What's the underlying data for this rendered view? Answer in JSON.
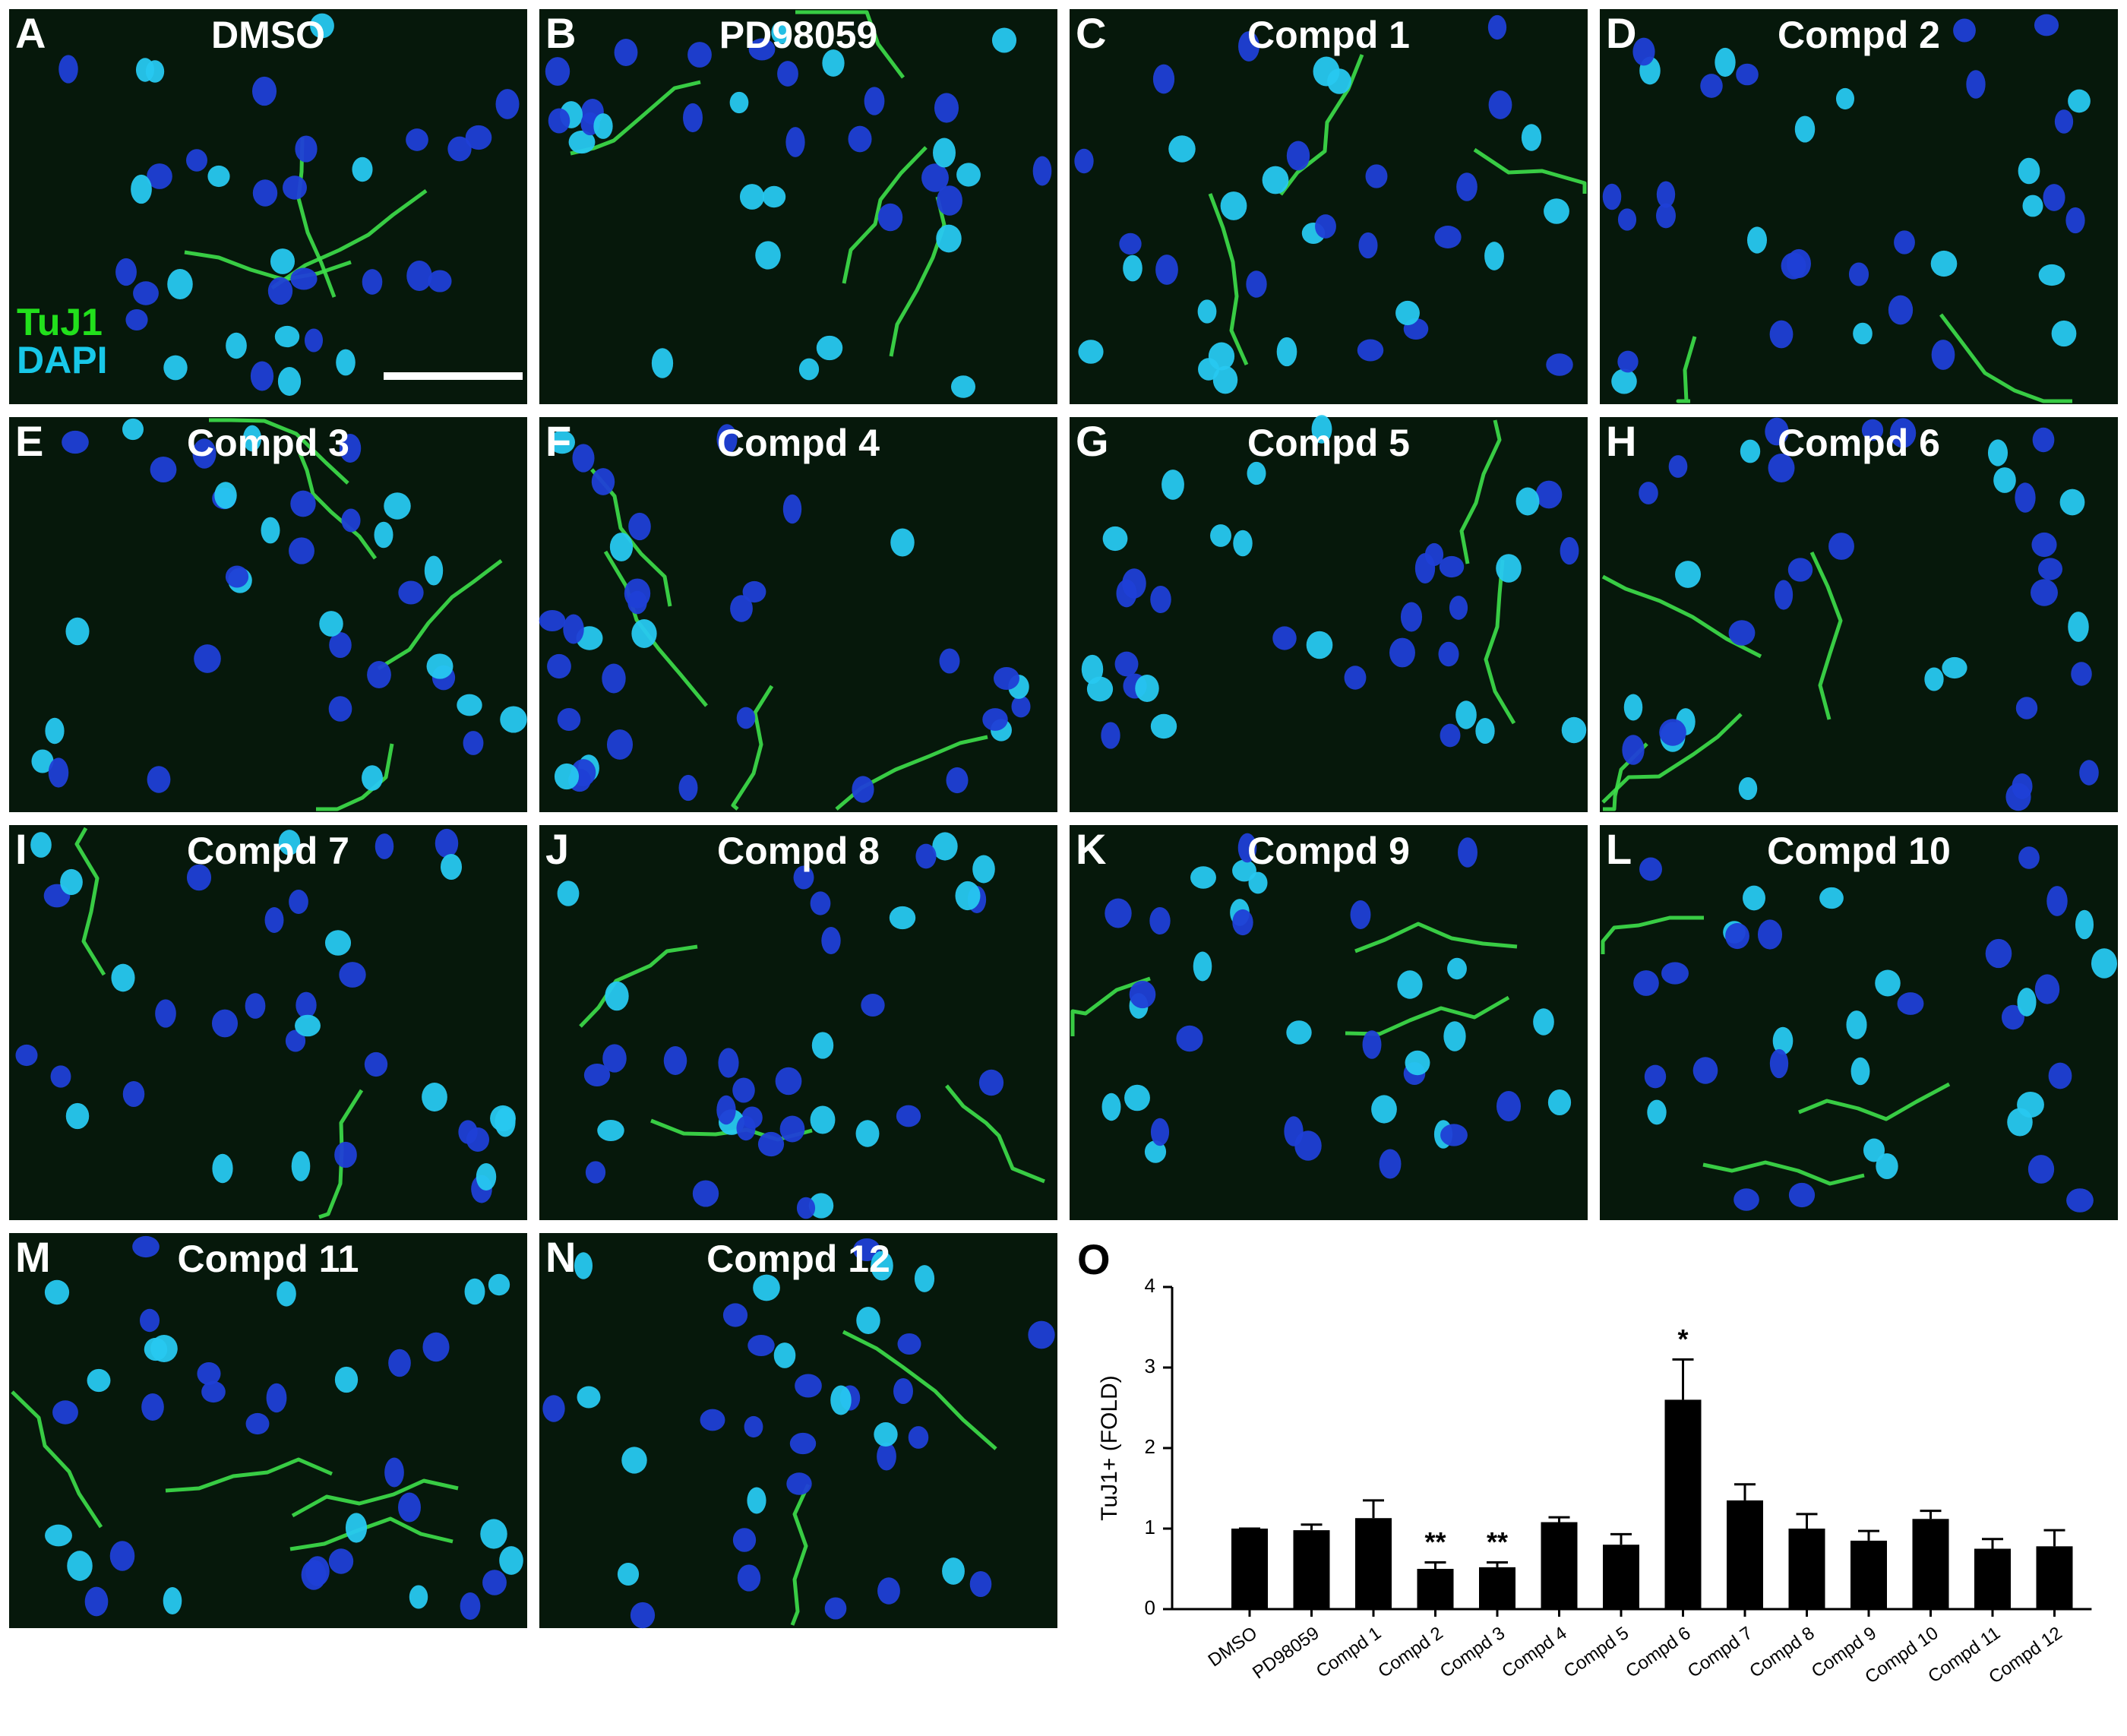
{
  "panels": [
    {
      "letter": "A",
      "title": "DMSO"
    },
    {
      "letter": "B",
      "title": "PD98059"
    },
    {
      "letter": "C",
      "title": "Compd 1"
    },
    {
      "letter": "D",
      "title": "Compd 2"
    },
    {
      "letter": "E",
      "title": "Compd 3"
    },
    {
      "letter": "F",
      "title": "Compd 4"
    },
    {
      "letter": "G",
      "title": "Compd 5"
    },
    {
      "letter": "H",
      "title": "Compd 6"
    },
    {
      "letter": "I",
      "title": "Compd 7"
    },
    {
      "letter": "J",
      "title": "Compd 8"
    },
    {
      "letter": "K",
      "title": "Compd 9"
    },
    {
      "letter": "L",
      "title": "Compd 10"
    },
    {
      "letter": "M",
      "title": "Compd 11"
    },
    {
      "letter": "N",
      "title": "Compd 12"
    }
  ],
  "stain_labels": [
    {
      "text": "TuJ1",
      "color": "#22e01c"
    },
    {
      "text": "DAPI",
      "color": "#18c8e8"
    }
  ],
  "chart_panel_letter": "O",
  "chart_data": {
    "type": "bar",
    "ylabel": "TuJ1+ (FOLD)",
    "categories": [
      "DMSO",
      "PD98059",
      "Compd 1",
      "Compd 2",
      "Compd 3",
      "Compd 4",
      "Compd 5",
      "Compd 6",
      "Compd 7",
      "Compd 8",
      "Compd 9",
      "Compd 10",
      "Compd 11",
      "Compd 12"
    ],
    "values": [
      1.0,
      0.98,
      1.13,
      0.5,
      0.52,
      1.08,
      0.8,
      2.6,
      1.35,
      1.0,
      0.85,
      1.12,
      0.75,
      0.78
    ],
    "errors": [
      0,
      0.07,
      0.22,
      0.08,
      0.06,
      0.06,
      0.13,
      0.5,
      0.2,
      0.18,
      0.12,
      0.1,
      0.12,
      0.2
    ],
    "significance": [
      null,
      null,
      null,
      "**",
      "**",
      null,
      null,
      "*",
      null,
      null,
      null,
      null,
      null,
      null
    ],
    "color": "#000000",
    "ylim": [
      0,
      4
    ],
    "yticks": [
      0,
      1,
      2,
      3,
      4
    ]
  }
}
